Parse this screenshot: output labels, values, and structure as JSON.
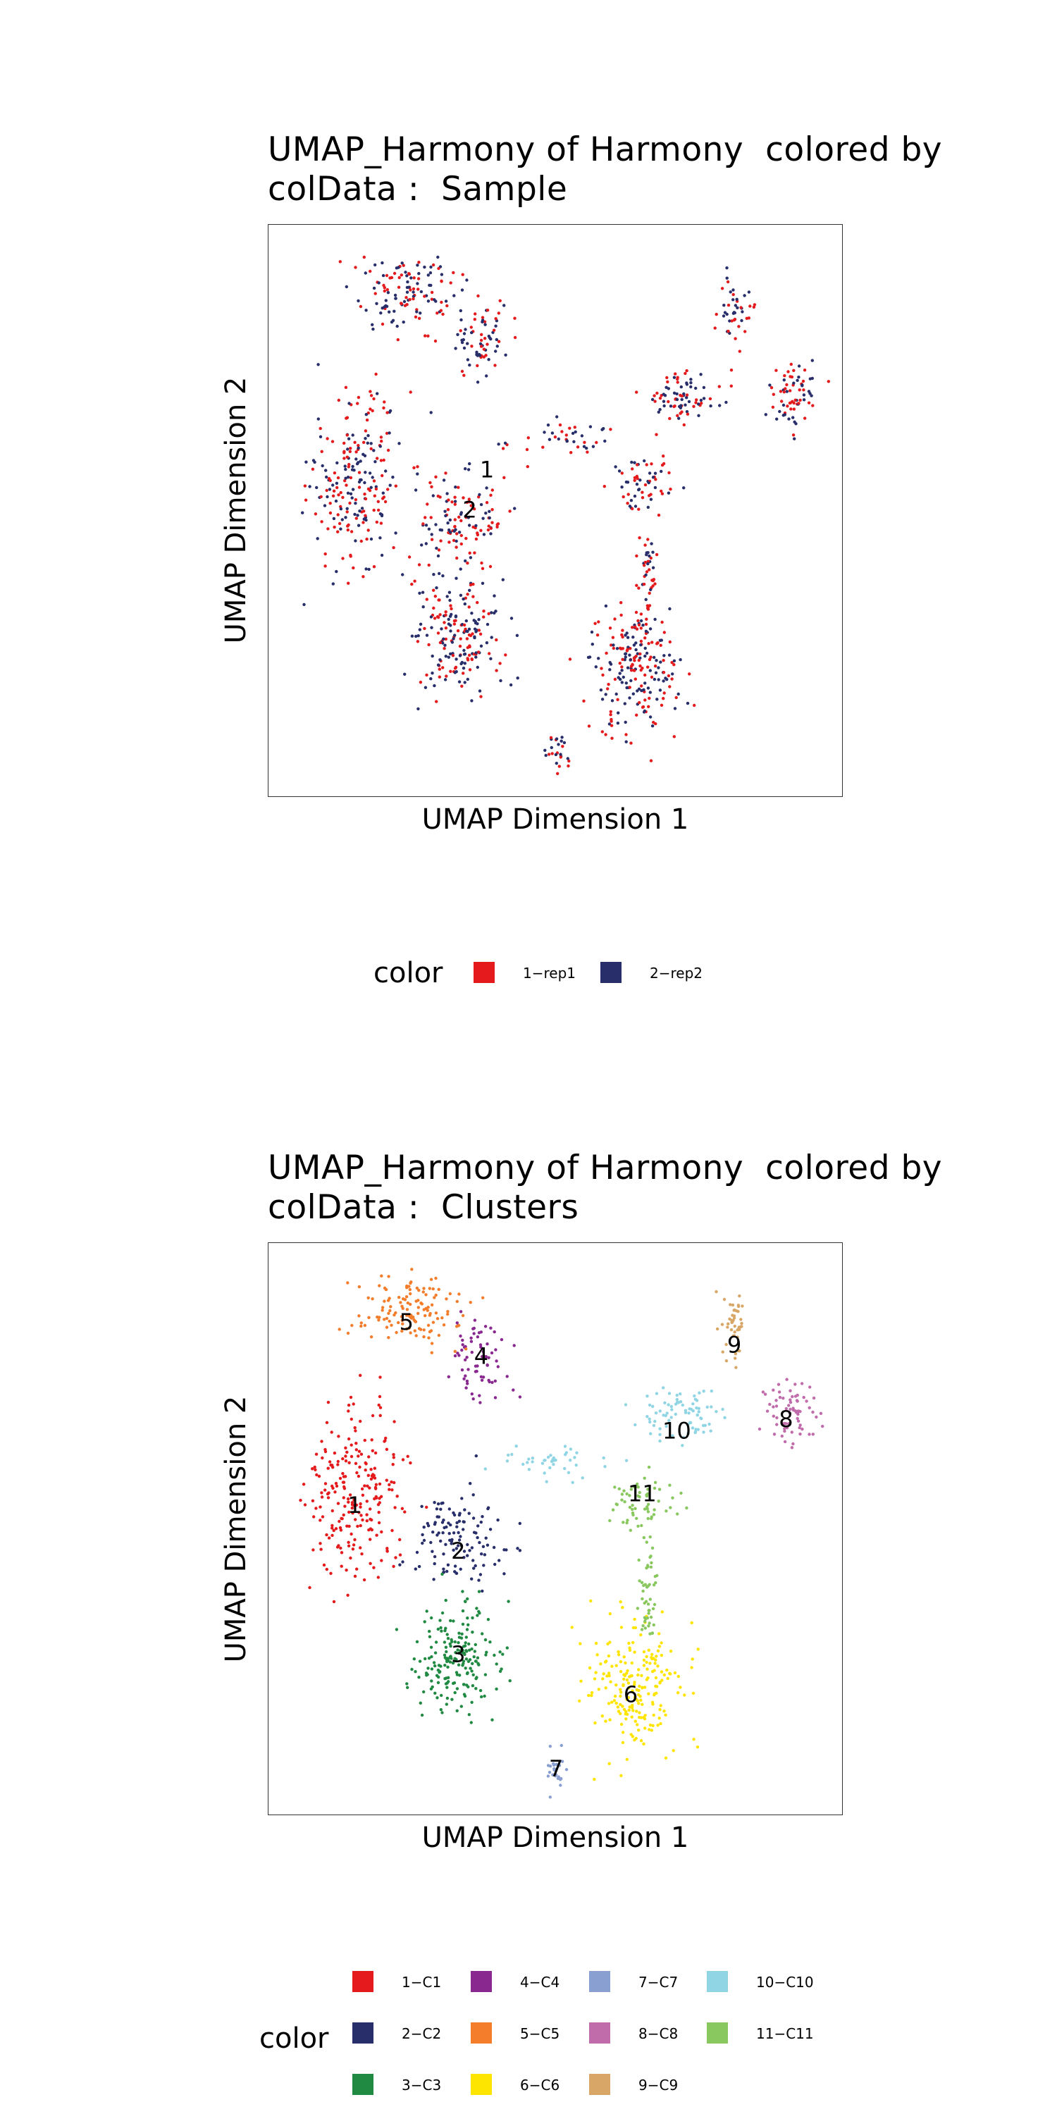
{
  "chart_data": [
    {
      "type": "scatter",
      "title": [
        "UMAP_Harmony of Harmony  colored by",
        "colData :  Sample"
      ],
      "xlabel": "UMAP Dimension 1",
      "ylabel": "UMAP Dimension 2",
      "grid": false,
      "legend_position": "bottom",
      "legend_title": "color",
      "legend": [
        {
          "label": "1−rep1",
          "color": "#e41a1c"
        },
        {
          "label": "2−rep2",
          "color": "#272e6a"
        }
      ],
      "annotations": [
        {
          "text": "1",
          "x": 0.38,
          "y": 0.57
        },
        {
          "text": "2",
          "x": 0.35,
          "y": 0.5
        }
      ],
      "note_coords": "normalized 0-1 positions within plot area"
    },
    {
      "type": "scatter",
      "title": [
        "UMAP_Harmony of Harmony  colored by",
        "colData :  Clusters"
      ],
      "xlabel": "UMAP Dimension 1",
      "ylabel": "UMAP Dimension 2",
      "grid": false,
      "legend_position": "bottom",
      "legend_title": "color",
      "legend": [
        {
          "label": "1−C1",
          "color": "#e41a1c"
        },
        {
          "label": "2−C2",
          "color": "#272e6a"
        },
        {
          "label": "3−C3",
          "color": "#208a42"
        },
        {
          "label": "4−C4",
          "color": "#89288f"
        },
        {
          "label": "5−C5",
          "color": "#f47d2b"
        },
        {
          "label": "6−C6",
          "color": "#fee500"
        },
        {
          "label": "7−C7",
          "color": "#8a9fd1"
        },
        {
          "label": "8−C8",
          "color": "#c06cab"
        },
        {
          "label": "9−C9",
          "color": "#d8a767"
        },
        {
          "label": "10−C10",
          "color": "#90d5e4"
        },
        {
          "label": "11−C11",
          "color": "#89c75f"
        }
      ],
      "annotations": [
        {
          "text": "1",
          "x": 0.15,
          "y": 0.54
        },
        {
          "text": "2",
          "x": 0.33,
          "y": 0.46
        },
        {
          "text": "3",
          "x": 0.33,
          "y": 0.28
        },
        {
          "text": "4",
          "x": 0.37,
          "y": 0.8
        },
        {
          "text": "5",
          "x": 0.24,
          "y": 0.86
        },
        {
          "text": "6",
          "x": 0.63,
          "y": 0.21
        },
        {
          "text": "7",
          "x": 0.5,
          "y": 0.08
        },
        {
          "text": "8",
          "x": 0.9,
          "y": 0.69
        },
        {
          "text": "9",
          "x": 0.81,
          "y": 0.82
        },
        {
          "text": "10",
          "x": 0.71,
          "y": 0.67
        },
        {
          "text": "11",
          "x": 0.65,
          "y": 0.56
        }
      ]
    }
  ]
}
